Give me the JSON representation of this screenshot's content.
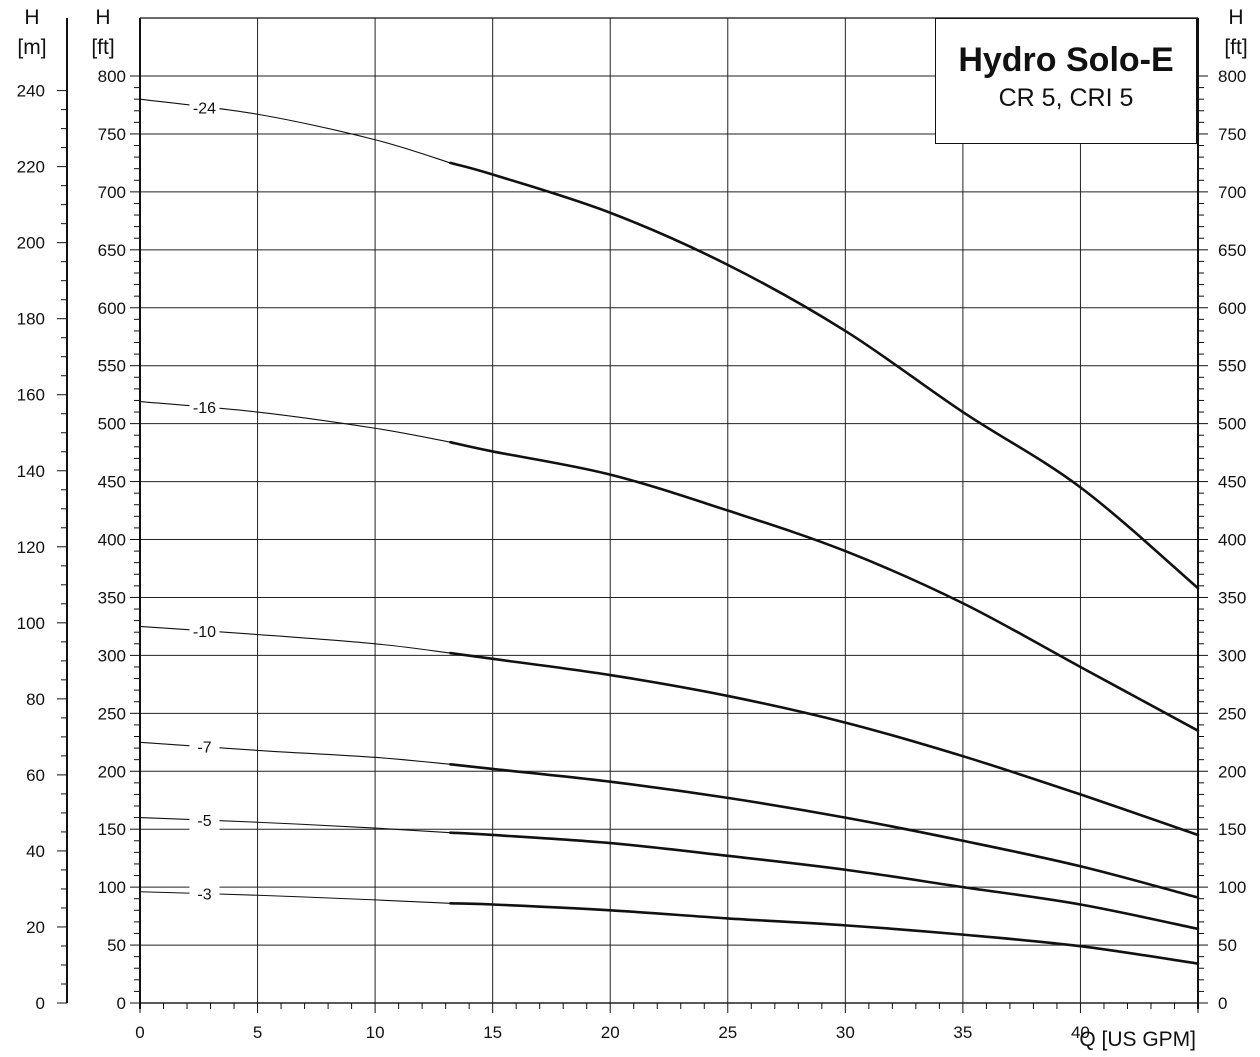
{
  "chart_data": {
    "type": "line",
    "title": "Hydro Solo-E",
    "subtitle": "CR 5, CRI 5",
    "xlabel": "Q [US GPM]",
    "ylabel_left_m": [
      "H",
      "[m]"
    ],
    "ylabel_left_ft": [
      "H",
      "[ft]"
    ],
    "ylabel_right_ft": [
      "H",
      "[ft]"
    ],
    "xlim": [
      0,
      45
    ],
    "ylim_ft": [
      0,
      800
    ],
    "ylim_m": [
      0,
      243.84
    ],
    "grid": true,
    "x_ticks": [
      "0",
      "5",
      "10",
      "15",
      "20",
      "25",
      "30",
      "35",
      "40"
    ],
    "ft_ticks": [
      "0",
      "50",
      "100",
      "150",
      "200",
      "250",
      "300",
      "350",
      "400",
      "450",
      "500",
      "550",
      "600",
      "650",
      "700",
      "750",
      "800"
    ],
    "m_ticks": [
      "0",
      "20",
      "40",
      "60",
      "80",
      "100",
      "120",
      "140",
      "160",
      "180",
      "200",
      "220",
      "240"
    ],
    "bold_range_x": [
      13.2,
      45
    ],
    "series": [
      {
        "name": "-24",
        "x": [
          0,
          5,
          10,
          13.2,
          15,
          20,
          25,
          30,
          35,
          40,
          45
        ],
        "y": [
          780,
          767,
          745,
          725,
          715,
          682,
          637,
          580,
          510,
          445,
          358
        ]
      },
      {
        "name": "-16",
        "x": [
          0,
          5,
          10,
          13.2,
          15,
          20,
          25,
          30,
          35,
          40,
          45
        ],
        "y": [
          519,
          510,
          496,
          484,
          476,
          456,
          425,
          390,
          345,
          290,
          235
        ]
      },
      {
        "name": "-10",
        "x": [
          0,
          5,
          10,
          13.2,
          15,
          20,
          25,
          30,
          35,
          40,
          45
        ],
        "y": [
          325,
          318,
          310,
          302,
          297,
          283,
          265,
          242,
          213,
          180,
          145
        ]
      },
      {
        "name": "-7",
        "x": [
          0,
          5,
          10,
          13.2,
          15,
          20,
          25,
          30,
          35,
          40,
          45
        ],
        "y": [
          225,
          218,
          212,
          206,
          202,
          191,
          177,
          160,
          140,
          118,
          91
        ]
      },
      {
        "name": "-5",
        "x": [
          0,
          5,
          10,
          13.2,
          15,
          20,
          25,
          30,
          35,
          40,
          45
        ],
        "y": [
          160,
          156,
          151,
          147,
          145,
          138,
          127,
          115,
          100,
          85,
          64
        ]
      },
      {
        "name": "-3",
        "x": [
          0,
          5,
          10,
          13.2,
          15,
          20,
          25,
          30,
          35,
          40,
          45
        ],
        "y": [
          96,
          93,
          89,
          86,
          85,
          80,
          73,
          67,
          59,
          49,
          34
        ]
      }
    ]
  }
}
